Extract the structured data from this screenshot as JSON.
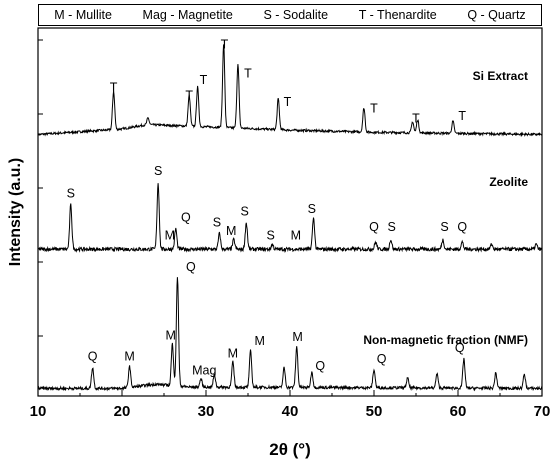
{
  "legend": {
    "items": [
      "M - Mullite",
      "Mag - Magnetite",
      "S - Sodalite",
      "T - Thenardite",
      "Q - Quartz"
    ]
  },
  "chart_data": {
    "type": "line",
    "xlabel": "2θ (°)",
    "ylabel": "Intensity (a.u.)",
    "xlim": [
      10,
      70
    ],
    "xticks": [
      10,
      20,
      30,
      40,
      50,
      60,
      70
    ],
    "grid": false,
    "series": [
      {
        "name": "Si Extract",
        "color": "#000000",
        "baseline": 0.05,
        "noise": 0.02,
        "points": [
          [
            10,
            0.05
          ],
          [
            20,
            0.1
          ],
          [
            23,
            0.14
          ],
          [
            30,
            0.12
          ],
          [
            40,
            0.09
          ],
          [
            50,
            0.07
          ],
          [
            60,
            0.06
          ],
          [
            70,
            0.05
          ]
        ],
        "peaks": [
          [
            19.0,
            0.35
          ],
          [
            23.1,
            0.06
          ],
          [
            28.0,
            0.28
          ],
          [
            29.0,
            0.36
          ],
          [
            32.1,
            0.75
          ],
          [
            33.8,
            0.58
          ],
          [
            38.6,
            0.28
          ],
          [
            48.8,
            0.22
          ],
          [
            54.6,
            0.1
          ],
          [
            55.2,
            0.12
          ],
          [
            59.4,
            0.11
          ]
        ],
        "labels": [
          {
            "text": "T",
            "x": 19.0,
            "y": 0.44
          },
          {
            "text": "T",
            "x": 28.0,
            "y": 0.37
          },
          {
            "text": "T",
            "x": 29.7,
            "y": 0.51
          },
          {
            "text": "T",
            "x": 32.2,
            "y": 0.83
          },
          {
            "text": "T",
            "x": 35.0,
            "y": 0.57
          },
          {
            "text": "T",
            "x": 39.7,
            "y": 0.31
          },
          {
            "text": "T",
            "x": 50.0,
            "y": 0.25
          },
          {
            "text": "T",
            "x": 55.0,
            "y": 0.16
          },
          {
            "text": "T",
            "x": 60.5,
            "y": 0.18
          }
        ]
      },
      {
        "name": "Zeolite",
        "color": "#000000",
        "baseline": 0.04,
        "noise": 0.03,
        "points": [
          [
            10,
            0.04
          ],
          [
            70,
            0.04
          ]
        ],
        "peaks": [
          [
            13.9,
            0.37
          ],
          [
            24.3,
            0.55
          ],
          [
            26.4,
            0.17
          ],
          [
            31.6,
            0.13
          ],
          [
            33.3,
            0.08
          ],
          [
            34.8,
            0.22
          ],
          [
            37.9,
            0.04
          ],
          [
            42.8,
            0.26
          ],
          [
            50.2,
            0.06
          ],
          [
            52.0,
            0.08
          ],
          [
            58.2,
            0.08
          ],
          [
            60.5,
            0.06
          ],
          [
            64.0,
            0.04
          ],
          [
            69.3,
            0.04
          ]
        ],
        "labels": [
          {
            "text": "S",
            "x": 13.9,
            "y": 0.47
          },
          {
            "text": "S",
            "x": 24.3,
            "y": 0.66
          },
          {
            "text": "Q",
            "x": 27.6,
            "y": 0.27
          },
          {
            "text": "M",
            "x": 25.7,
            "y": 0.12
          },
          {
            "text": "S",
            "x": 31.3,
            "y": 0.23
          },
          {
            "text": "M",
            "x": 33.0,
            "y": 0.16
          },
          {
            "text": "S",
            "x": 34.6,
            "y": 0.32
          },
          {
            "text": "S",
            "x": 37.7,
            "y": 0.12
          },
          {
            "text": "M",
            "x": 40.7,
            "y": 0.12
          },
          {
            "text": "S",
            "x": 42.6,
            "y": 0.34
          },
          {
            "text": "Q",
            "x": 50.0,
            "y": 0.19
          },
          {
            "text": "S",
            "x": 52.1,
            "y": 0.19
          },
          {
            "text": "S",
            "x": 58.4,
            "y": 0.19
          },
          {
            "text": "Q",
            "x": 60.5,
            "y": 0.19
          }
        ]
      },
      {
        "name": "Non-magnetic fraction (NMF)",
        "color": "#000000",
        "baseline": 0.04,
        "noise": 0.02,
        "points": [
          [
            10,
            0.04
          ],
          [
            20,
            0.04
          ],
          [
            24,
            0.07
          ],
          [
            28,
            0.05
          ],
          [
            70,
            0.04
          ]
        ],
        "peaks": [
          [
            16.5,
            0.15
          ],
          [
            20.9,
            0.15
          ],
          [
            26.0,
            0.3
          ],
          [
            26.6,
            0.78
          ],
          [
            29.4,
            0.06
          ],
          [
            31.0,
            0.09
          ],
          [
            33.2,
            0.18
          ],
          [
            35.3,
            0.26
          ],
          [
            39.3,
            0.14
          ],
          [
            40.8,
            0.29
          ],
          [
            42.6,
            0.11
          ],
          [
            50.0,
            0.13
          ],
          [
            54.0,
            0.07
          ],
          [
            57.5,
            0.1
          ],
          [
            60.7,
            0.21
          ],
          [
            64.5,
            0.11
          ],
          [
            67.9,
            0.1
          ]
        ],
        "labels": [
          {
            "text": "Q",
            "x": 16.5,
            "y": 0.24
          },
          {
            "text": "M",
            "x": 20.9,
            "y": 0.24
          },
          {
            "text": "M",
            "x": 25.8,
            "y": 0.39
          },
          {
            "text": "Q",
            "x": 28.2,
            "y": 0.88
          },
          {
            "text": "Mag",
            "x": 29.8,
            "y": 0.14
          },
          {
            "text": "M",
            "x": 33.2,
            "y": 0.26
          },
          {
            "text": "M",
            "x": 36.4,
            "y": 0.35
          },
          {
            "text": "M",
            "x": 40.9,
            "y": 0.38
          },
          {
            "text": "Q",
            "x": 43.6,
            "y": 0.17
          },
          {
            "text": "Q",
            "x": 50.9,
            "y": 0.22
          },
          {
            "text": "Q",
            "x": 60.2,
            "y": 0.3
          }
        ]
      }
    ]
  }
}
